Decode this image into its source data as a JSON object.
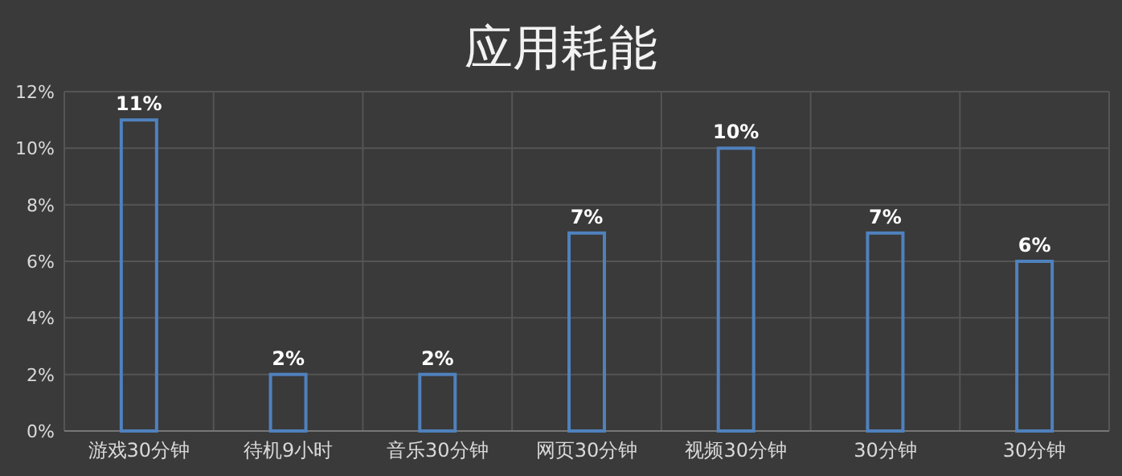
{
  "chart_data": {
    "type": "bar",
    "title": "应用耗能",
    "categories": [
      "游戏30分钟",
      "待机9小时",
      "音乐30分钟",
      "网页30分钟",
      "视频30分钟",
      "30分钟",
      "30分钟"
    ],
    "values": [
      11,
      2,
      2,
      7,
      10,
      7,
      6
    ],
    "value_labels": [
      "11%",
      "2%",
      "2%",
      "7%",
      "10%",
      "7%",
      "6%"
    ],
    "color": "#4f81bd",
    "ylim": [
      0,
      12
    ],
    "yticks": [
      {
        "value": 0,
        "label": "0%"
      },
      {
        "value": 2,
        "label": "2%"
      },
      {
        "value": 4,
        "label": "4%"
      },
      {
        "value": 6,
        "label": "6%"
      },
      {
        "value": 8,
        "label": "8%"
      },
      {
        "value": 10,
        "label": "10%"
      },
      {
        "value": 12,
        "label": "12%"
      }
    ],
    "grid": true
  }
}
